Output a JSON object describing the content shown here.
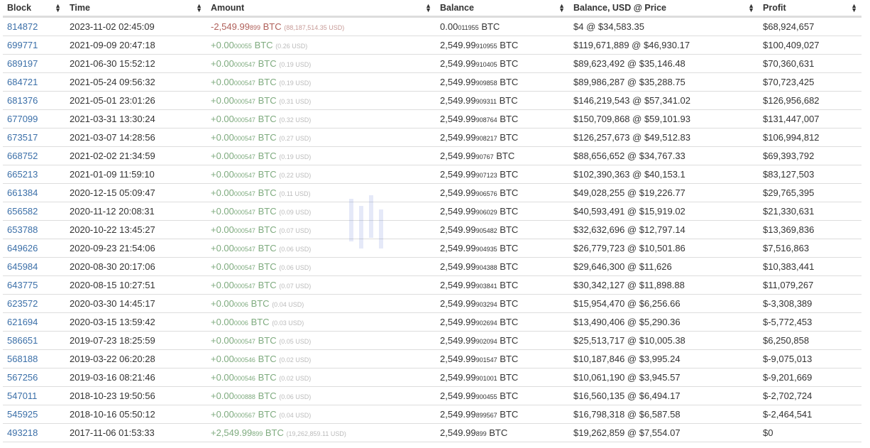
{
  "headers": [
    "Block",
    "Time",
    "Amount",
    "Balance",
    "Balance, USD @ Price",
    "Profit"
  ],
  "colors": {
    "link": "#3b6fa8",
    "negative": "#b0605a",
    "positive": "#7fab7f"
  },
  "rows": [
    {
      "block": "814872",
      "time": "2023-11-02 02:45:09",
      "sign": "neg",
      "amt": "-2,549.99",
      "amt_s": "899",
      "amt_usd": "(88,187,514.35 USD)",
      "bal": "0.00",
      "bal_s": "011955",
      "usd": "$4 @ $34,583.35",
      "profit": "$68,924,657"
    },
    {
      "block": "699771",
      "time": "2021-09-09 20:47:18",
      "sign": "pos",
      "amt": "+0.00",
      "amt_s": "00055",
      "amt_usd": "(0.26 USD)",
      "bal": "2,549.99",
      "bal_s": "910955",
      "usd": "$119,671,889 @ $46,930.17",
      "profit": "$100,409,027"
    },
    {
      "block": "689197",
      "time": "2021-06-30 15:52:12",
      "sign": "pos",
      "amt": "+0.00",
      "amt_s": "000547",
      "amt_usd": "(0.19 USD)",
      "bal": "2,549.99",
      "bal_s": "910405",
      "usd": "$89,623,492 @ $35,146.48",
      "profit": "$70,360,631"
    },
    {
      "block": "684721",
      "time": "2021-05-24 09:56:32",
      "sign": "pos",
      "amt": "+0.00",
      "amt_s": "000547",
      "amt_usd": "(0.19 USD)",
      "bal": "2,549.99",
      "bal_s": "909858",
      "usd": "$89,986,287 @ $35,288.75",
      "profit": "$70,723,425"
    },
    {
      "block": "681376",
      "time": "2021-05-01 23:01:26",
      "sign": "pos",
      "amt": "+0.00",
      "amt_s": "000547",
      "amt_usd": "(0.31 USD)",
      "bal": "2,549.99",
      "bal_s": "909311",
      "usd": "$146,219,543 @ $57,341.02",
      "profit": "$126,956,682"
    },
    {
      "block": "677099",
      "time": "2021-03-31 13:30:24",
      "sign": "pos",
      "amt": "+0.00",
      "amt_s": "000547",
      "amt_usd": "(0.32 USD)",
      "bal": "2,549.99",
      "bal_s": "908764",
      "usd": "$150,709,868 @ $59,101.93",
      "profit": "$131,447,007"
    },
    {
      "block": "673517",
      "time": "2021-03-07 14:28:56",
      "sign": "pos",
      "amt": "+0.00",
      "amt_s": "000547",
      "amt_usd": "(0.27 USD)",
      "bal": "2,549.99",
      "bal_s": "908217",
      "usd": "$126,257,673 @ $49,512.83",
      "profit": "$106,994,812"
    },
    {
      "block": "668752",
      "time": "2021-02-02 21:34:59",
      "sign": "pos",
      "amt": "+0.00",
      "amt_s": "000547",
      "amt_usd": "(0.19 USD)",
      "bal": "2,549.99",
      "bal_s": "90767",
      "usd": "$88,656,652 @ $34,767.33",
      "profit": "$69,393,792"
    },
    {
      "block": "665213",
      "time": "2021-01-09 11:59:10",
      "sign": "pos",
      "amt": "+0.00",
      "amt_s": "000547",
      "amt_usd": "(0.22 USD)",
      "bal": "2,549.99",
      "bal_s": "907123",
      "usd": "$102,390,363 @ $40,153.1",
      "profit": "$83,127,503"
    },
    {
      "block": "661384",
      "time": "2020-12-15 05:09:47",
      "sign": "pos",
      "amt": "+0.00",
      "amt_s": "000547",
      "amt_usd": "(0.11 USD)",
      "bal": "2,549.99",
      "bal_s": "906576",
      "usd": "$49,028,255 @ $19,226.77",
      "profit": "$29,765,395"
    },
    {
      "block": "656582",
      "time": "2020-11-12 20:08:31",
      "sign": "pos",
      "amt": "+0.00",
      "amt_s": "000547",
      "amt_usd": "(0.09 USD)",
      "bal": "2,549.99",
      "bal_s": "906029",
      "usd": "$40,593,491 @ $15,919.02",
      "profit": "$21,330,631"
    },
    {
      "block": "653788",
      "time": "2020-10-22 13:45:27",
      "sign": "pos",
      "amt": "+0.00",
      "amt_s": "000547",
      "amt_usd": "(0.07 USD)",
      "bal": "2,549.99",
      "bal_s": "905482",
      "usd": "$32,632,696 @ $12,797.14",
      "profit": "$13,369,836"
    },
    {
      "block": "649626",
      "time": "2020-09-23 21:54:06",
      "sign": "pos",
      "amt": "+0.00",
      "amt_s": "000547",
      "amt_usd": "(0.06 USD)",
      "bal": "2,549.99",
      "bal_s": "904935",
      "usd": "$26,779,723 @ $10,501.86",
      "profit": "$7,516,863"
    },
    {
      "block": "645984",
      "time": "2020-08-30 20:17:06",
      "sign": "pos",
      "amt": "+0.00",
      "amt_s": "000547",
      "amt_usd": "(0.06 USD)",
      "bal": "2,549.99",
      "bal_s": "904388",
      "usd": "$29,646,300 @ $11,626",
      "profit": "$10,383,441"
    },
    {
      "block": "643775",
      "time": "2020-08-15 10:27:51",
      "sign": "pos",
      "amt": "+0.00",
      "amt_s": "000547",
      "amt_usd": "(0.07 USD)",
      "bal": "2,549.99",
      "bal_s": "903841",
      "usd": "$30,342,127 @ $11,898.88",
      "profit": "$11,079,267"
    },
    {
      "block": "623572",
      "time": "2020-03-30 14:45:17",
      "sign": "pos",
      "amt": "+0.00",
      "amt_s": "0006",
      "amt_usd": "(0.04 USD)",
      "bal": "2,549.99",
      "bal_s": "903294",
      "usd": "$15,954,470 @ $6,256.66",
      "profit": "$-3,308,389"
    },
    {
      "block": "621694",
      "time": "2020-03-15 13:59:42",
      "sign": "pos",
      "amt": "+0.00",
      "amt_s": "0006",
      "amt_usd": "(0.03 USD)",
      "bal": "2,549.99",
      "bal_s": "902694",
      "usd": "$13,490,406 @ $5,290.36",
      "profit": "$-5,772,453"
    },
    {
      "block": "586651",
      "time": "2019-07-23 18:25:59",
      "sign": "pos",
      "amt": "+0.00",
      "amt_s": "000547",
      "amt_usd": "(0.05 USD)",
      "bal": "2,549.99",
      "bal_s": "902094",
      "usd": "$25,513,717 @ $10,005.38",
      "profit": "$6,250,858"
    },
    {
      "block": "568188",
      "time": "2019-03-22 06:20:28",
      "sign": "pos",
      "amt": "+0.00",
      "amt_s": "000546",
      "amt_usd": "(0.02 USD)",
      "bal": "2,549.99",
      "bal_s": "901547",
      "usd": "$10,187,846 @ $3,995.24",
      "profit": "$-9,075,013"
    },
    {
      "block": "567256",
      "time": "2019-03-16 08:21:46",
      "sign": "pos",
      "amt": "+0.00",
      "amt_s": "000546",
      "amt_usd": "(0.02 USD)",
      "bal": "2,549.99",
      "bal_s": "901001",
      "usd": "$10,061,190 @ $3,945.57",
      "profit": "$-9,201,669"
    },
    {
      "block": "547011",
      "time": "2018-10-23 19:50:56",
      "sign": "pos",
      "amt": "+0.00",
      "amt_s": "000888",
      "amt_usd": "(0.06 USD)",
      "bal": "2,549.99",
      "bal_s": "900455",
      "usd": "$16,560,135 @ $6,494.17",
      "profit": "$-2,702,724"
    },
    {
      "block": "545925",
      "time": "2018-10-16 05:50:12",
      "sign": "pos",
      "amt": "+0.00",
      "amt_s": "000567",
      "amt_usd": "(0.04 USD)",
      "bal": "2,549.99",
      "bal_s": "899567",
      "usd": "$16,798,318 @ $6,587.58",
      "profit": "$-2,464,541"
    },
    {
      "block": "493218",
      "time": "2017-11-06 01:53:33",
      "sign": "pos",
      "amt": "+2,549.99",
      "amt_s": "899",
      "amt_usd": "(19,262,859.11 USD)",
      "bal": "2,549.99",
      "bal_s": "899",
      "usd": "$19,262,859 @ $7,554.07",
      "profit": "$0"
    }
  ],
  "unit": "BTC"
}
